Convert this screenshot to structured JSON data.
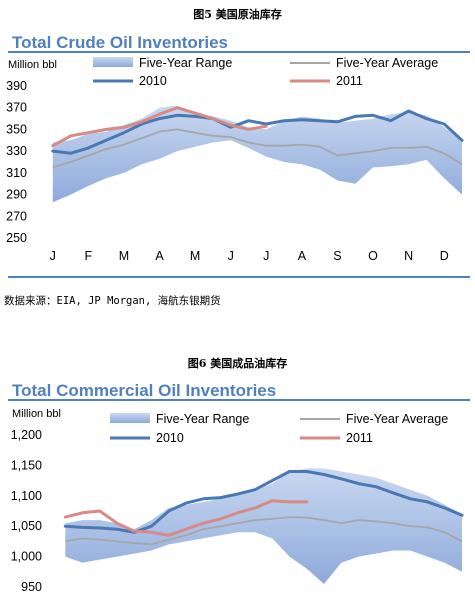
{
  "figure1": {
    "caption": "图5  美国原油库存",
    "source": "数据来源：EIA, JP Morgan, 海航东银期货",
    "chart_data": {
      "type": "line",
      "title": "Total Crude Oil Inventories",
      "ylabel": "Million bbl",
      "ylim": [
        250,
        390
      ],
      "yticks": [
        390,
        370,
        350,
        330,
        310,
        290,
        270,
        250
      ],
      "months": [
        "J",
        "F",
        "M",
        "A",
        "M",
        "J",
        "J",
        "A",
        "S",
        "O",
        "N",
        "D"
      ],
      "legend": [
        "Five-Year Range",
        "Five-Year Average",
        "2010",
        "2011"
      ],
      "colors": {
        "range": "#8eaadb",
        "average": "#a6a6a6",
        "y2010": "#4a78b5",
        "y2011": "#d88a84"
      },
      "x": [
        0,
        0.5,
        1,
        1.5,
        2,
        2.5,
        3,
        3.5,
        4,
        4.5,
        5,
        5.5,
        6,
        6.5,
        7,
        7.5,
        8,
        8.5,
        9,
        9.5,
        10,
        10.5,
        11,
        11.5
      ],
      "range_low": [
        283,
        290,
        298,
        305,
        310,
        318,
        323,
        330,
        334,
        338,
        340,
        333,
        325,
        320,
        318,
        313,
        303,
        300,
        315,
        316,
        318,
        322,
        305,
        290
      ],
      "range_high": [
        338,
        340,
        346,
        348,
        354,
        360,
        370,
        372,
        365,
        362,
        358,
        352,
        350,
        358,
        362,
        360,
        356,
        358,
        360,
        364,
        366,
        363,
        352,
        340
      ],
      "average": [
        315,
        320,
        326,
        332,
        336,
        342,
        348,
        350,
        347,
        344,
        343,
        338,
        335,
        335,
        336,
        334,
        326,
        328,
        330,
        333,
        333,
        334,
        328,
        318
      ],
      "series": [
        {
          "name": "2010",
          "values": [
            330,
            328,
            333,
            340,
            347,
            355,
            360,
            363,
            362,
            360,
            352,
            358,
            355,
            358,
            359,
            358,
            357,
            362,
            363,
            358,
            367,
            360,
            355,
            340
          ]
        },
        {
          "name": "2011",
          "values": [
            335,
            344,
            347,
            350,
            352,
            357,
            364,
            370,
            365,
            360,
            354,
            350,
            353,
            null,
            null,
            null,
            null,
            null,
            null,
            null,
            null,
            null,
            null,
            null
          ]
        }
      ]
    }
  },
  "figure2": {
    "caption": "图6  美国成品油库存",
    "chart_data": {
      "type": "line",
      "title": "Total Commercial Oil Inventories",
      "ylabel": "Million bbl",
      "ylim": [
        950,
        1200
      ],
      "yticks": [
        "1,200",
        "1,150",
        "1,100",
        "1,050",
        "1,000",
        "950"
      ],
      "ytick_values": [
        1200,
        1150,
        1100,
        1050,
        1000,
        950
      ],
      "legend": [
        "Five-Year Range",
        "Five-Year Average",
        "2010",
        "2011"
      ],
      "colors": {
        "range": "#8eaadb",
        "average": "#a6a6a6",
        "y2010": "#4a78b5",
        "y2011": "#d88a84"
      },
      "x": [
        0,
        0.5,
        1,
        1.5,
        2,
        2.5,
        3,
        3.5,
        4,
        4.5,
        5,
        5.5,
        6,
        6.5,
        7,
        7.5,
        8,
        8.5,
        9,
        9.5,
        10,
        10.5,
        11,
        11.5
      ],
      "range_low": [
        1000,
        990,
        995,
        1000,
        1005,
        1010,
        1020,
        1025,
        1030,
        1035,
        1040,
        1040,
        1030,
        1000,
        980,
        955,
        990,
        1000,
        1005,
        1010,
        1010,
        1000,
        990,
        975
      ],
      "range_high": [
        1055,
        1060,
        1060,
        1055,
        1045,
        1060,
        1080,
        1085,
        1090,
        1095,
        1105,
        1110,
        1120,
        1140,
        1145,
        1145,
        1140,
        1135,
        1130,
        1120,
        1110,
        1100,
        1085,
        1070
      ],
      "average": [
        1025,
        1030,
        1028,
        1025,
        1022,
        1020,
        1028,
        1035,
        1045,
        1050,
        1055,
        1060,
        1062,
        1065,
        1064,
        1060,
        1055,
        1060,
        1058,
        1055,
        1050,
        1048,
        1040,
        1025
      ],
      "series": [
        {
          "name": "2010",
          "values": [
            1050,
            1048,
            1047,
            1045,
            1040,
            1050,
            1075,
            1088,
            1095,
            1097,
            1103,
            1110,
            1125,
            1140,
            1140,
            1135,
            1128,
            1120,
            1115,
            1105,
            1095,
            1090,
            1080,
            1068
          ]
        },
        {
          "name": "2011",
          "values": [
            1065,
            1072,
            1075,
            1055,
            1042,
            1040,
            1035,
            1045,
            1055,
            1062,
            1072,
            1080,
            1092,
            1090,
            1090,
            null,
            null,
            null,
            null,
            null,
            null,
            null,
            null,
            null
          ]
        }
      ]
    }
  }
}
